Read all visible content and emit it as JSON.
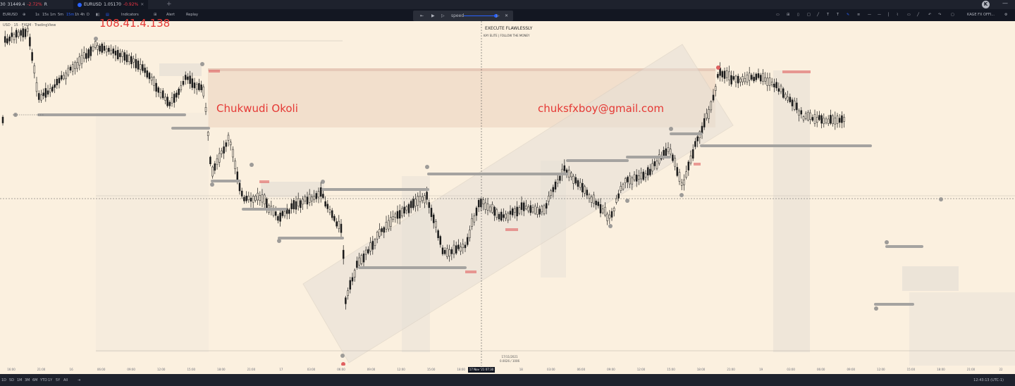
{
  "tabs": [
    {
      "label": "30",
      "price": "31449.4",
      "change": "-2.72%",
      "extra": "R"
    },
    {
      "label": "EURUSD",
      "price": "1.05170",
      "change": "-0.92%"
    }
  ],
  "avatar_letter": "K",
  "toolbar": {
    "symbol": "EURUSD",
    "intervals": [
      "1s",
      "15s",
      "1m",
      "5m",
      "15m",
      "1h",
      "4h",
      "D"
    ],
    "active_interval": "15m",
    "indicators_label": "Indicators",
    "alert_label": "Alert",
    "replay_label": "Replay",
    "layout_name": "KAGE FX OFFI..."
  },
  "replay": {
    "speed_label": "speed"
  },
  "overlays": {
    "ip": "108.41.4.138",
    "name": "Chukwudi Okoli",
    "email": "chuksfxboy@gmail.com",
    "headline": "EXECUTE FLAWLESSLY",
    "subline": "KAY ELITE | FOLLOW THE MONEY",
    "symbol_info": "USD · 15 · FXCM · TradingView",
    "cross_info_1": "17/11/2021",
    "cross_info_2": "0.0026 / 1006"
  },
  "time_axis": {
    "ticks": [
      "16:00",
      "21:00",
      "16",
      "06:00",
      "09:00",
      "12:00",
      "15:00",
      "18:00",
      "21:00",
      "17",
      "03:00",
      "06:00",
      "09:00",
      "12:00",
      "15:00",
      "18:00",
      "21:00",
      "18",
      "03:00",
      "06:00",
      "09:00",
      "12:00",
      "15:00",
      "18:00",
      "21:00",
      "19",
      "03:00",
      "06:00",
      "09:00",
      "12:00",
      "15:00",
      "18:00",
      "21:00",
      "22"
    ],
    "crosshair_label": "17 Nov '21  07:30"
  },
  "bottom": {
    "ranges": [
      "1D",
      "5D",
      "1M",
      "3M",
      "6M",
      "YTD",
      "1Y",
      "5Y",
      "All"
    ],
    "clock": "12:43:13 (UTC-1)"
  },
  "colors": {
    "chart_bg": "#fbf0df",
    "candle": "#1a1a1a",
    "zone": "#efd9c5",
    "zone_top": "#e6c9b8",
    "level": "#a5a3a0",
    "channel": "#e6dfd6",
    "red_mark": "#e06060",
    "watermark": "#e53935"
  }
}
